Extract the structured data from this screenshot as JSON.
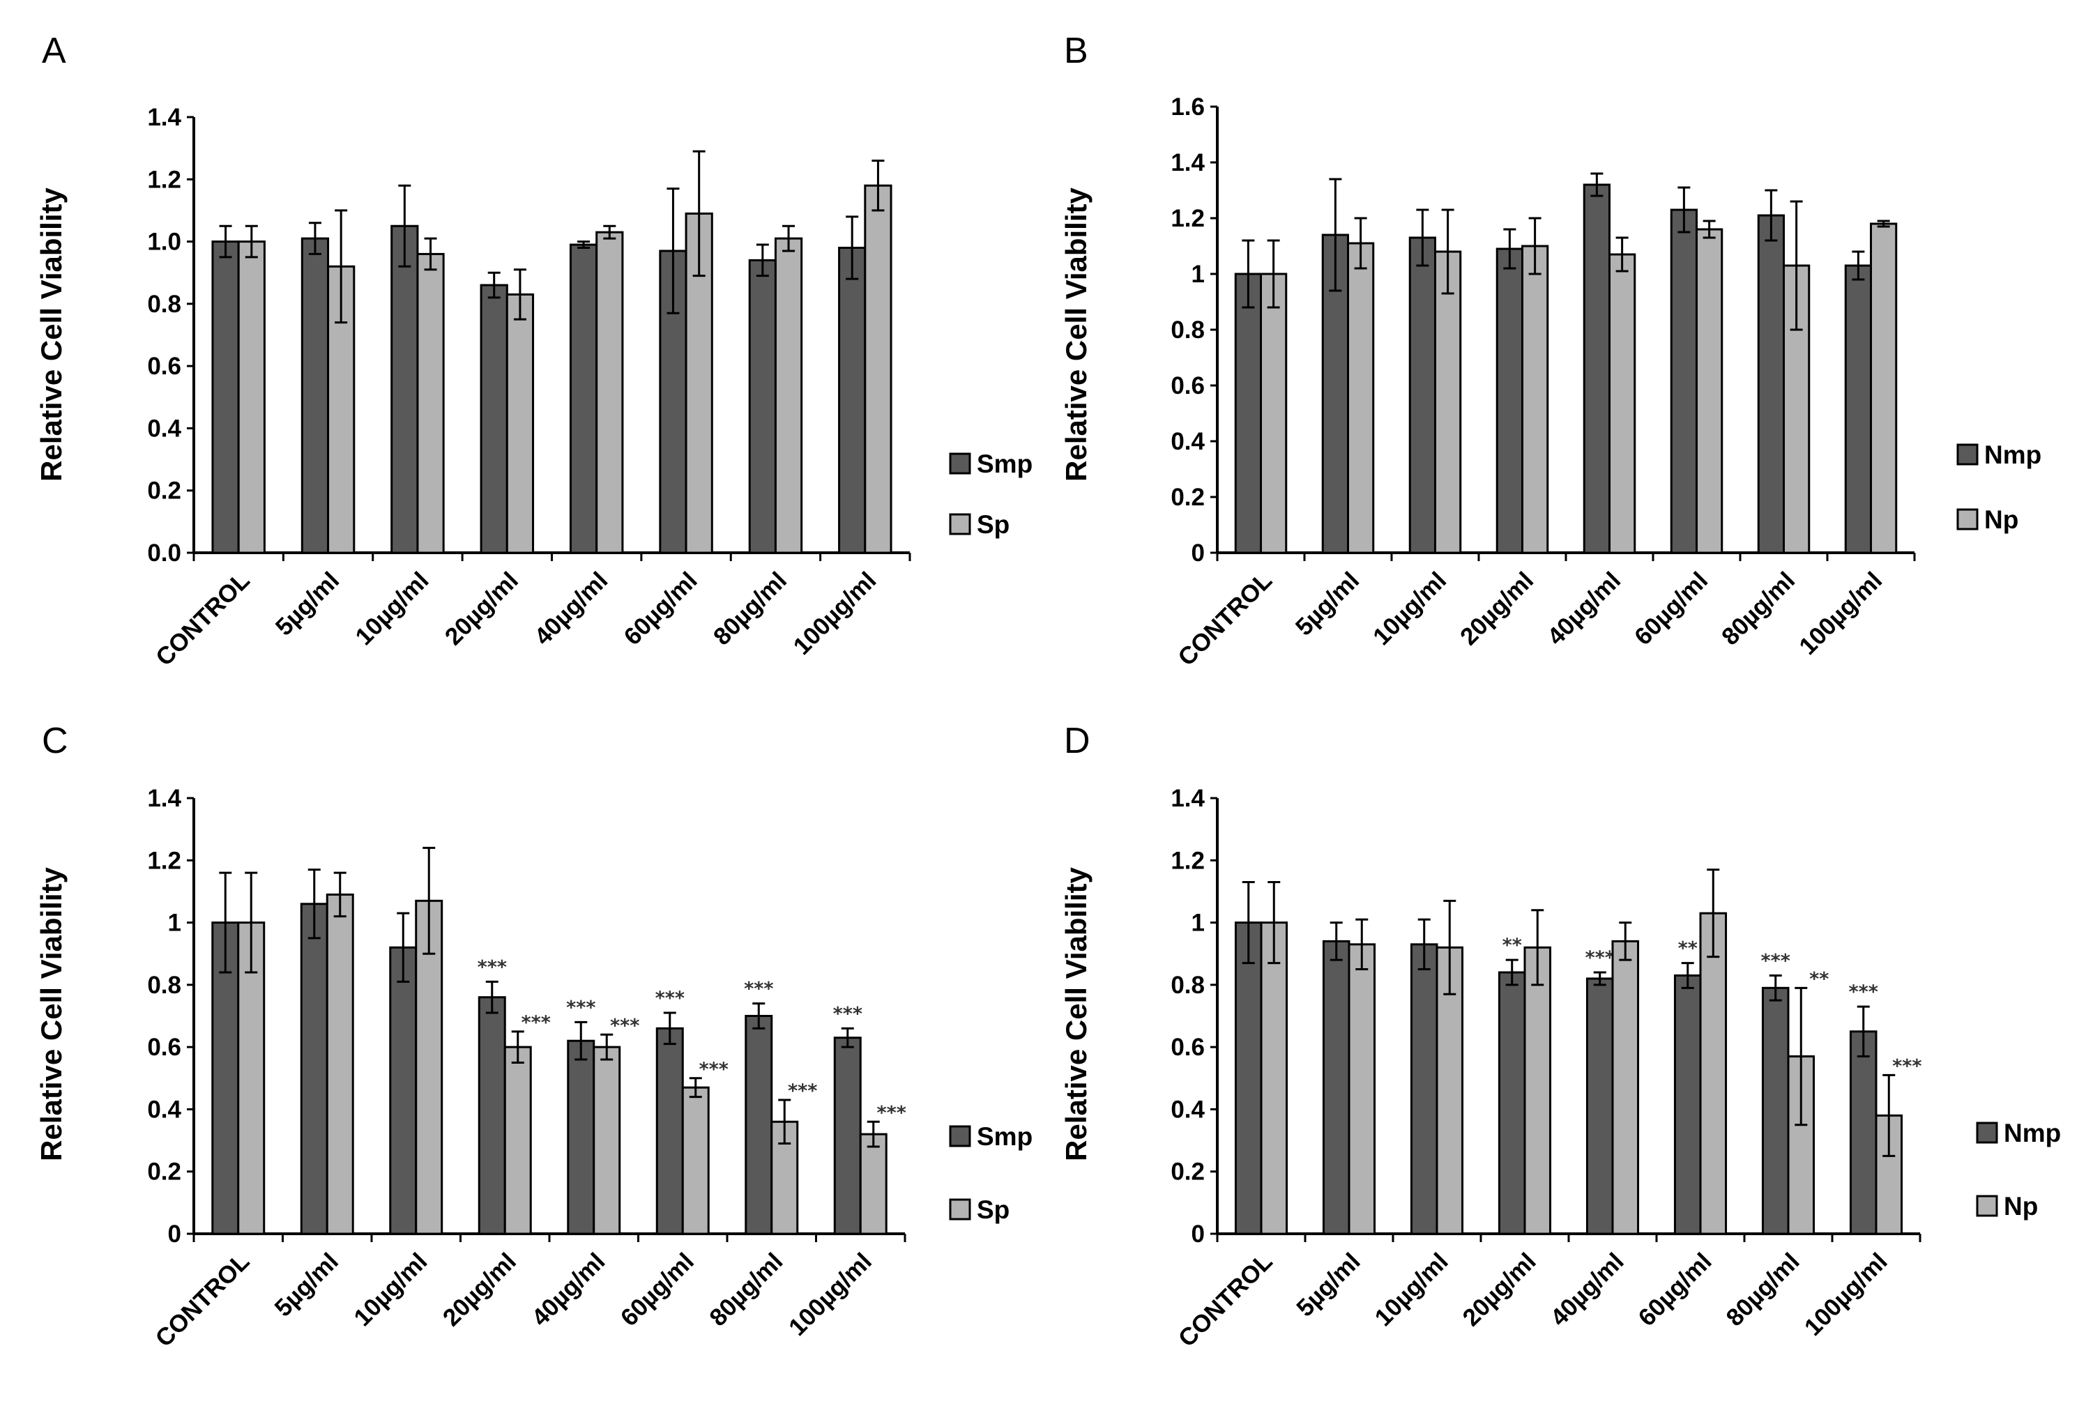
{
  "colors": {
    "series_dark": "#595959",
    "series_light": "#b3b3b3",
    "stroke": "#000000"
  },
  "chart_data": [
    {
      "panel": "A",
      "type": "bar",
      "title": "",
      "xlabel": "",
      "ylabel": "Relative Cell Viability",
      "ylim": [
        0,
        1.4
      ],
      "yticks": [
        "0.0",
        "0.2",
        "0.4",
        "0.6",
        "0.8",
        "1.0",
        "1.2",
        "1.4"
      ],
      "categories": [
        "CONTROL",
        "5µg/ml",
        "10µg/ml",
        "20µg/ml",
        "40µg/ml",
        "60µg/ml",
        "80µg/ml",
        "100µg/ml"
      ],
      "legend_position": "right",
      "series": [
        {
          "name": "Smp",
          "values": [
            1.0,
            1.01,
            1.05,
            0.86,
            0.99,
            0.97,
            0.94,
            0.98
          ],
          "errors": [
            0.05,
            0.05,
            0.13,
            0.04,
            0.01,
            0.2,
            0.05,
            0.1
          ],
          "sig": [
            "",
            "",
            "",
            "",
            "",
            "",
            "",
            ""
          ]
        },
        {
          "name": "Sp",
          "values": [
            1.0,
            0.92,
            0.96,
            0.83,
            1.03,
            1.09,
            1.01,
            1.18
          ],
          "errors": [
            0.05,
            0.18,
            0.05,
            0.08,
            0.02,
            0.2,
            0.04,
            0.08
          ],
          "sig": [
            "",
            "",
            "",
            "",
            "",
            "",
            "",
            ""
          ]
        }
      ]
    },
    {
      "panel": "B",
      "type": "bar",
      "title": "",
      "xlabel": "",
      "ylabel": "Relative Cell Viability",
      "ylim": [
        0,
        1.6
      ],
      "yticks": [
        "0",
        "0.2",
        "0.4",
        "0.6",
        "0.8",
        "1",
        "1.2",
        "1.4",
        "1.6"
      ],
      "categories": [
        "CONTROL",
        "5µg/ml",
        "10µg/ml",
        "20µg/ml",
        "40µg/ml",
        "60µg/ml",
        "80µg/ml",
        "100µg/ml"
      ],
      "legend_position": "right",
      "series": [
        {
          "name": "Nmp",
          "values": [
            1.0,
            1.14,
            1.13,
            1.09,
            1.32,
            1.23,
            1.21,
            1.03
          ],
          "errors": [
            0.12,
            0.2,
            0.1,
            0.07,
            0.04,
            0.08,
            0.09,
            0.05
          ],
          "sig": [
            "",
            "",
            "",
            "",
            "",
            "",
            "",
            ""
          ]
        },
        {
          "name": "Np",
          "values": [
            1.0,
            1.11,
            1.08,
            1.1,
            1.07,
            1.16,
            1.03,
            1.18
          ],
          "errors": [
            0.12,
            0.09,
            0.15,
            0.1,
            0.06,
            0.03,
            0.23,
            0.01
          ],
          "sig": [
            "",
            "",
            "",
            "",
            "",
            "",
            "",
            ""
          ]
        }
      ]
    },
    {
      "panel": "C",
      "type": "bar",
      "title": "",
      "xlabel": "",
      "ylabel": "Relative Cell Viability",
      "ylim": [
        0,
        1.4
      ],
      "yticks": [
        "0",
        "0.2",
        "0.4",
        "0.6",
        "0.8",
        "1",
        "1.2",
        "1.4"
      ],
      "categories": [
        "CONTROL",
        "5µg/ml",
        "10µg/ml",
        "20µg/ml",
        "40µg/ml",
        "60µg/ml",
        "80µg/ml",
        "100µg/ml"
      ],
      "legend_position": "right",
      "series": [
        {
          "name": "Smp",
          "values": [
            1.0,
            1.06,
            0.92,
            0.76,
            0.62,
            0.66,
            0.7,
            0.63
          ],
          "errors": [
            0.16,
            0.11,
            0.11,
            0.05,
            0.06,
            0.05,
            0.04,
            0.03
          ],
          "sig": [
            "",
            "",
            "",
            "***",
            "***",
            "***",
            "***",
            "***"
          ]
        },
        {
          "name": "Sp",
          "values": [
            1.0,
            1.09,
            1.07,
            0.6,
            0.6,
            0.47,
            0.36,
            0.32
          ],
          "errors": [
            0.16,
            0.07,
            0.17,
            0.05,
            0.04,
            0.03,
            0.07,
            0.04
          ],
          "sig": [
            "",
            "",
            "",
            "***",
            "***",
            "***",
            "***",
            "***"
          ]
        }
      ]
    },
    {
      "panel": "D",
      "type": "bar",
      "title": "",
      "xlabel": "",
      "ylabel": "Relative Cell Viability",
      "ylim": [
        0,
        1.4
      ],
      "yticks": [
        "0",
        "0.2",
        "0.4",
        "0.6",
        "0.8",
        "1",
        "1.2",
        "1.4"
      ],
      "categories": [
        "CONTROL",
        "5µg/ml",
        "10µg/ml",
        "20µg/ml",
        "40µg/ml",
        "60µg/ml",
        "80µg/ml",
        "100µg/ml"
      ],
      "legend_position": "right",
      "series": [
        {
          "name": "Nmp",
          "values": [
            1.0,
            0.94,
            0.93,
            0.84,
            0.82,
            0.83,
            0.79,
            0.65
          ],
          "errors": [
            0.13,
            0.06,
            0.08,
            0.04,
            0.02,
            0.04,
            0.04,
            0.08
          ],
          "sig": [
            "",
            "",
            "",
            "**",
            "***",
            "**",
            "***",
            "***"
          ]
        },
        {
          "name": "Np",
          "values": [
            1.0,
            0.93,
            0.92,
            0.92,
            0.94,
            1.03,
            0.57,
            0.38
          ],
          "errors": [
            0.13,
            0.08,
            0.15,
            0.12,
            0.06,
            0.14,
            0.22,
            0.13
          ],
          "sig": [
            "",
            "",
            "",
            "",
            "",
            "",
            "**",
            "***"
          ]
        }
      ]
    }
  ]
}
